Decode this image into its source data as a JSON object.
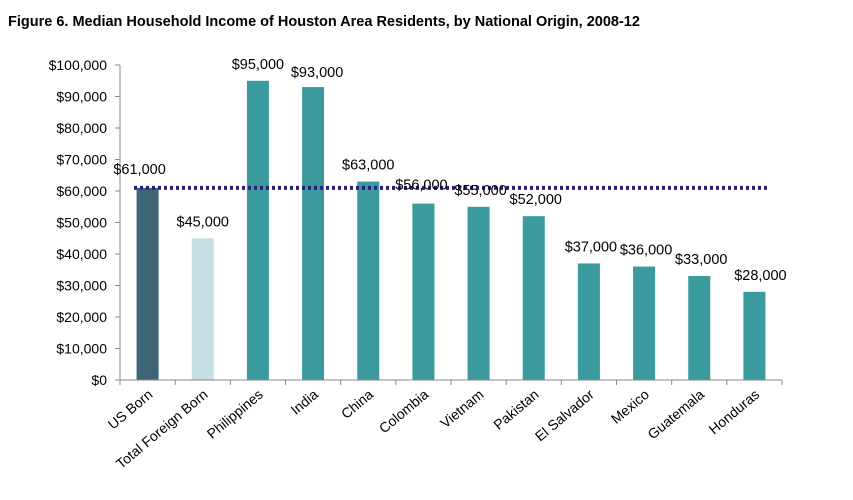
{
  "figure_title": "Figure 6.  Median Household Income of Houston Area Residents, by National Origin, 2008-12",
  "chart_data": {
    "type": "bar",
    "title": "Figure 6.  Median Household Income of Houston Area Residents, by National Origin, 2008-12",
    "xlabel": "",
    "ylabel": "",
    "categories": [
      "US Born",
      "Total Foreign Born",
      "Philippines",
      "India",
      "China",
      "Colombia",
      "Vietnam",
      "Pakistan",
      "El Salvador",
      "Mexico",
      "Guatemala",
      "Honduras"
    ],
    "values": [
      61000,
      45000,
      95000,
      93000,
      63000,
      56000,
      55000,
      52000,
      37000,
      36000,
      33000,
      28000
    ],
    "data_labels": [
      "$61,000",
      "$45,000",
      "$95,000",
      "$93,000",
      "$63,000",
      "$56,000",
      "$55,000",
      "$52,000",
      "$37,000",
      "$36,000",
      "$33,000",
      "$28,000"
    ],
    "ylim": [
      0,
      100000
    ],
    "y_ticks": [
      0,
      10000,
      20000,
      30000,
      40000,
      50000,
      60000,
      70000,
      80000,
      90000,
      100000
    ],
    "y_tick_labels": [
      "$0",
      "$10,000",
      "$20,000",
      "$30,000",
      "$40,000",
      "$50,000",
      "$60,000",
      "$70,000",
      "$80,000",
      "$90,000",
      "$100,000"
    ],
    "reference_line": {
      "value": 61000,
      "style": "dotted",
      "color": "#2b1f7a"
    },
    "bar_colors": [
      "#3d6577",
      "#c5dfe3",
      "#3a9a9e",
      "#3a9a9e",
      "#3a9a9e",
      "#3a9a9e",
      "#3a9a9e",
      "#3a9a9e",
      "#3a9a9e",
      "#3a9a9e",
      "#3a9a9e",
      "#3a9a9e"
    ],
    "grid": false,
    "legend": "none"
  }
}
